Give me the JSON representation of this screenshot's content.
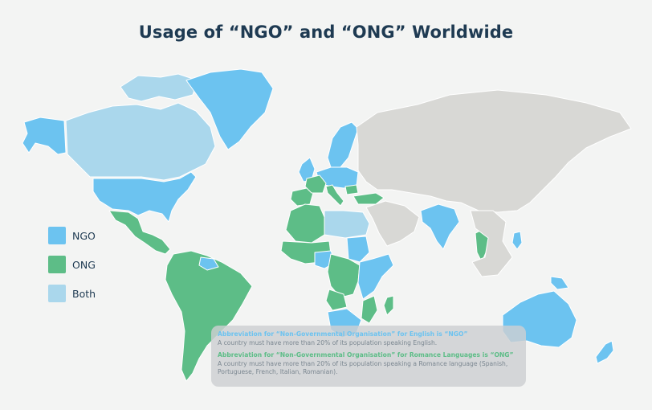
{
  "title": "Usage of “NGO” and “ONG” Worldwide",
  "colors": {
    "ngo": "#6cc3f0",
    "ong": "#5dbd87",
    "both": "#aad7ec",
    "other": "#d8d8d5",
    "background": "#f3f4f3"
  },
  "legend": [
    {
      "label": "NGO",
      "color": "#6cc3f0"
    },
    {
      "label": "ONG",
      "color": "#5dbd87"
    },
    {
      "label": "Both",
      "color": "#aad7ec"
    }
  ],
  "notes": {
    "ngo_heading": "Abbreviation for “Non-Governmental Organisation” for English is “NGO”",
    "ngo_text": "A country must have more than 20% of its population speaking English.",
    "ong_heading": "Abbreviation for “Non-Governmental Organisation” for Romance Languages is “ONG”",
    "ong_text": "A country must have more than 20% of its population speaking a Romance language (Spanish, Portuguese, French, Italian, Romanian)."
  },
  "regions": [
    {
      "name": "alaska",
      "category": "ngo"
    },
    {
      "name": "canada",
      "category": "both"
    },
    {
      "name": "canadian-arctic-islands",
      "category": "both"
    },
    {
      "name": "greenland",
      "category": "ngo"
    },
    {
      "name": "usa",
      "category": "ngo"
    },
    {
      "name": "mexico-central-america",
      "category": "ong"
    },
    {
      "name": "south-america",
      "category": "ong"
    },
    {
      "name": "guyana",
      "category": "ngo"
    },
    {
      "name": "iberia",
      "category": "ong"
    },
    {
      "name": "france",
      "category": "ong"
    },
    {
      "name": "italy",
      "category": "ong"
    },
    {
      "name": "romania",
      "category": "ong"
    },
    {
      "name": "uk-ireland",
      "category": "ngo"
    },
    {
      "name": "northern-europe",
      "category": "ngo"
    },
    {
      "name": "central-europe",
      "category": "ngo"
    },
    {
      "name": "turkey",
      "category": "ong"
    },
    {
      "name": "russia-asia",
      "category": "other"
    },
    {
      "name": "middle-east",
      "category": "other"
    },
    {
      "name": "north-africa",
      "category": "ong"
    },
    {
      "name": "libya-egypt",
      "category": "both"
    },
    {
      "name": "west-africa",
      "category": "ong"
    },
    {
      "name": "nigeria-ghana",
      "category": "ngo"
    },
    {
      "name": "sudan",
      "category": "ngo"
    },
    {
      "name": "east-africa",
      "category": "ngo"
    },
    {
      "name": "central-africa",
      "category": "ong"
    },
    {
      "name": "southern-africa",
      "category": "ngo"
    },
    {
      "name": "angola",
      "category": "ong"
    },
    {
      "name": "mozambique",
      "category": "ong"
    },
    {
      "name": "madagascar",
      "category": "ong"
    },
    {
      "name": "india",
      "category": "ngo"
    },
    {
      "name": "indochina",
      "category": "ong"
    },
    {
      "name": "southeast-asia",
      "category": "other"
    },
    {
      "name": "philippines",
      "category": "ngo"
    },
    {
      "name": "papua-new-guinea",
      "category": "ngo"
    },
    {
      "name": "australia",
      "category": "ngo"
    },
    {
      "name": "new-zealand",
      "category": "ngo"
    }
  ]
}
